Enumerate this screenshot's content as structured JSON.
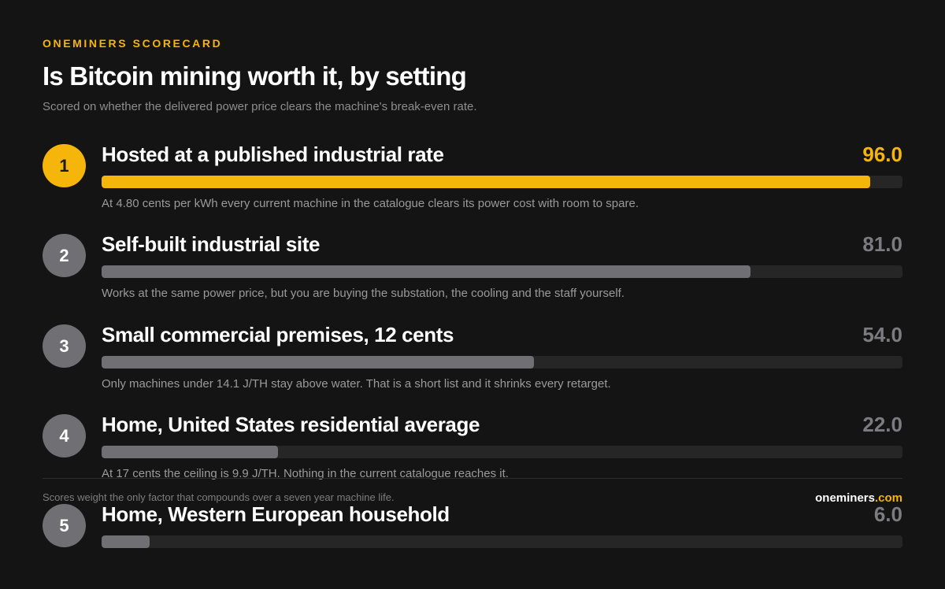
{
  "header": {
    "kicker": "ONEMINERS SCORECARD",
    "title": "Is Bitcoin mining worth it, by setting",
    "subtitle": "Scored on whether the delivered power price clears the machine's break-even rate."
  },
  "colors": {
    "background": "#141414",
    "accent": "#f5b50a",
    "bar_default": "#6f6f74",
    "track": "#262626"
  },
  "chart_data": {
    "type": "bar",
    "orientation": "horizontal",
    "ylim": [
      0,
      100
    ],
    "categories": [
      "Hosted at a published industrial rate",
      "Self-built industrial site",
      "Small commercial premises, 12 cents",
      "Home, United States residential average",
      "Home, Western European household"
    ],
    "values": [
      96.0,
      81.0,
      54.0,
      22.0,
      6.0
    ],
    "rows": [
      {
        "rank": "1",
        "label": "Hosted at a published industrial rate",
        "score": 96.0,
        "score_text": "96.0",
        "note": "At 4.80 cents per kWh every current machine in the catalogue clears its power cost with room to spare."
      },
      {
        "rank": "2",
        "label": "Self-built industrial site",
        "score": 81.0,
        "score_text": "81.0",
        "note": "Works at the same power price, but you are buying the substation, the cooling and the staff yourself."
      },
      {
        "rank": "3",
        "label": "Small commercial premises, 12 cents",
        "score": 54.0,
        "score_text": "54.0",
        "note": "Only machines under 14.1 J/TH stay above water. That is a short list and it shrinks every retarget."
      },
      {
        "rank": "4",
        "label": "Home, United States residential average",
        "score": 22.0,
        "score_text": "22.0",
        "note": "At 17 cents the ceiling is 9.9 J/TH. Nothing in the current catalogue reaches it."
      },
      {
        "rank": "5",
        "label": "Home, Western European household",
        "score": 6.0,
        "score_text": "6.0",
        "note": ""
      }
    ]
  },
  "footer": {
    "note": "Scores weight the only factor that compounds over a seven year machine life.",
    "brand_name": "oneminers",
    "brand_tld": ".com"
  }
}
